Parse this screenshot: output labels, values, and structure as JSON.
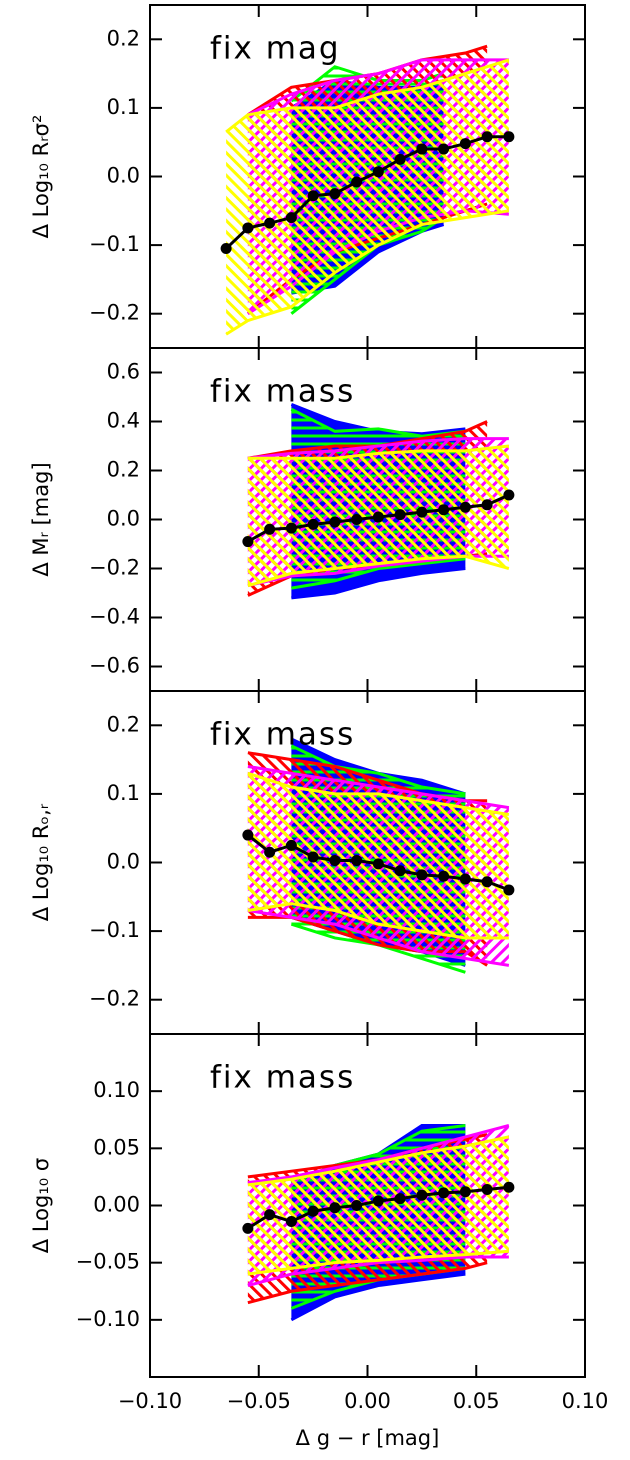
{
  "chart_data": [
    {
      "type": "band-line",
      "annotation": "fix mag",
      "ylabel": "Δ Log₁₀ Rᵣσ²",
      "xlim": [
        -0.1,
        0.1
      ],
      "xticks": [
        {
          "value": -0.1,
          "label": "−0.10"
        },
        {
          "value": -0.05,
          "label": "−0.05"
        },
        {
          "value": 0,
          "label": "0.00"
        },
        0.05,
        {
          "value": 0.1,
          "label": "0.10"
        }
      ],
      "ylim": [
        -0.25,
        0.25
      ],
      "yticks": [
        {
          "value": -0.2,
          "label": "−0.2"
        },
        {
          "value": -0.1,
          "label": "−0.1"
        },
        {
          "value": 0,
          "label": "0.0"
        },
        0.1,
        0.2
      ],
      "bands": [
        {
          "color": "#0000ff",
          "x": [
            -0.035,
            -0.015,
            0.005,
            0.025,
            0.035
          ],
          "upper": [
            0.1,
            0.14,
            0.13,
            0.13,
            0.14
          ],
          "lower": [
            -0.17,
            -0.16,
            -0.11,
            -0.08,
            -0.07
          ]
        },
        {
          "color": "#00ff00",
          "x": [
            -0.035,
            -0.015,
            0.005,
            0.025,
            0.035
          ],
          "upper": [
            0.11,
            0.16,
            0.14,
            0.14,
            0.15
          ],
          "lower": [
            -0.2,
            -0.15,
            -0.1,
            -0.08,
            -0.06
          ]
        },
        {
          "color": "#ff0000",
          "x": [
            -0.055,
            -0.035,
            -0.015,
            0.005,
            0.025,
            0.045,
            0.055
          ],
          "upper": [
            0.09,
            0.13,
            0.14,
            0.15,
            0.17,
            0.18,
            0.19
          ],
          "lower": [
            -0.2,
            -0.15,
            -0.11,
            -0.09,
            -0.07,
            -0.05,
            -0.04
          ]
        },
        {
          "color": "#ff00ff",
          "x": [
            -0.055,
            -0.035,
            -0.015,
            0.005,
            0.025,
            0.045,
            0.065
          ],
          "upper": [
            0.09,
            0.12,
            0.14,
            0.15,
            0.17,
            0.17,
            0.17
          ],
          "lower": [
            -0.2,
            -0.16,
            -0.11,
            -0.08,
            -0.06,
            -0.05,
            -0.055
          ]
        },
        {
          "color": "#ffff00",
          "x": [
            -0.065,
            -0.055,
            -0.035,
            -0.015,
            0.005,
            0.025,
            0.045,
            0.065
          ],
          "upper": [
            0.065,
            0.09,
            0.1,
            0.1,
            0.12,
            0.13,
            0.15,
            0.17
          ],
          "lower": [
            -0.23,
            -0.21,
            -0.19,
            -0.14,
            -0.1,
            -0.07,
            -0.06,
            -0.05
          ]
        }
      ],
      "series": [
        {
          "color": "#000000",
          "x": [
            -0.065,
            -0.055,
            -0.045,
            -0.035,
            -0.025,
            -0.015,
            -0.005,
            0.005,
            0.015,
            0.025,
            0.035,
            0.045,
            0.055,
            0.065
          ],
          "values": [
            -0.105,
            -0.075,
            -0.068,
            -0.06,
            -0.028,
            -0.025,
            -0.008,
            0.007,
            0.025,
            0.04,
            0.04,
            0.048,
            0.058,
            0.058
          ]
        }
      ]
    },
    {
      "type": "band-line",
      "annotation": "fix mass",
      "ylabel": "Δ Mᵣ [mag]",
      "xlim": [
        -0.1,
        0.1
      ],
      "xticks": [
        {
          "value": -0.1,
          "label": "−0.10"
        },
        {
          "value": -0.05,
          "label": "−0.05"
        },
        {
          "value": 0,
          "label": "0.00"
        },
        0.05,
        {
          "value": 0.1,
          "label": "0.10"
        }
      ],
      "ylim": [
        -0.7,
        0.7
      ],
      "yticks": [
        {
          "value": -0.6,
          "label": "−0.6"
        },
        {
          "value": -0.4,
          "label": "−0.4"
        },
        {
          "value": -0.2,
          "label": "−0.2"
        },
        {
          "value": 0,
          "label": "0.0"
        },
        0.2,
        0.4,
        0.6
      ],
      "bands": [
        {
          "color": "#0000ff",
          "x": [
            -0.035,
            -0.015,
            0.005,
            0.025,
            0.045
          ],
          "upper": [
            0.47,
            0.4,
            0.36,
            0.35,
            0.37
          ],
          "lower": [
            -0.32,
            -0.3,
            -0.25,
            -0.22,
            -0.2
          ]
        },
        {
          "color": "#00ff00",
          "x": [
            -0.035,
            -0.015,
            0.005,
            0.025,
            0.045
          ],
          "upper": [
            0.45,
            0.36,
            0.37,
            0.34,
            0.36
          ],
          "lower": [
            -0.28,
            -0.25,
            -0.2,
            -0.18,
            -0.16
          ]
        },
        {
          "color": "#ff0000",
          "x": [
            -0.055,
            -0.035,
            -0.015,
            0.005,
            0.025,
            0.045,
            0.055
          ],
          "upper": [
            0.25,
            0.28,
            0.3,
            0.3,
            0.33,
            0.36,
            0.4
          ],
          "lower": [
            -0.31,
            -0.23,
            -0.2,
            -0.19,
            -0.17,
            -0.15,
            -0.14
          ]
        },
        {
          "color": "#ff00ff",
          "x": [
            -0.055,
            -0.035,
            -0.015,
            0.005,
            0.025,
            0.045,
            0.065
          ],
          "upper": [
            0.25,
            0.27,
            0.28,
            0.3,
            0.32,
            0.33,
            0.33
          ],
          "lower": [
            -0.27,
            -0.23,
            -0.22,
            -0.19,
            -0.17,
            -0.15,
            -0.15
          ]
        },
        {
          "color": "#ffff00",
          "x": [
            -0.055,
            -0.035,
            -0.015,
            0.005,
            0.025,
            0.045,
            0.065
          ],
          "upper": [
            0.25,
            0.25,
            0.25,
            0.27,
            0.28,
            0.28,
            0.3
          ],
          "lower": [
            -0.27,
            -0.22,
            -0.2,
            -0.18,
            -0.16,
            -0.15,
            -0.2
          ]
        }
      ],
      "series": [
        {
          "color": "#000000",
          "x": [
            -0.055,
            -0.045,
            -0.035,
            -0.025,
            -0.015,
            -0.005,
            0.005,
            0.015,
            0.025,
            0.035,
            0.045,
            0.055,
            0.065
          ],
          "values": [
            -0.09,
            -0.04,
            -0.035,
            -0.02,
            -0.01,
            0,
            0.01,
            0.02,
            0.03,
            0.04,
            0.05,
            0.06,
            0.1
          ]
        }
      ]
    },
    {
      "type": "band-line",
      "annotation": "fix mass",
      "ylabel": "Δ Log₁₀ Rₒ,ᵣ",
      "xlim": [
        -0.1,
        0.1
      ],
      "xticks": [
        {
          "value": -0.1,
          "label": "−0.10"
        },
        {
          "value": -0.05,
          "label": "−0.05"
        },
        {
          "value": 0,
          "label": "0.00"
        },
        0.05,
        {
          "value": 0.1,
          "label": "0.10"
        }
      ],
      "ylim": [
        -0.25,
        0.25
      ],
      "yticks": [
        {
          "value": -0.2,
          "label": "−0.2"
        },
        {
          "value": -0.1,
          "label": "−0.1"
        },
        {
          "value": 0,
          "label": "0.0"
        },
        0.1,
        0.2
      ],
      "bands": [
        {
          "color": "#0000ff",
          "x": [
            -0.035,
            -0.015,
            0.005,
            0.025,
            0.045
          ],
          "upper": [
            0.18,
            0.15,
            0.13,
            0.12,
            0.1
          ],
          "lower": [
            -0.08,
            -0.1,
            -0.12,
            -0.13,
            -0.15
          ]
        },
        {
          "color": "#00ff00",
          "x": [
            -0.035,
            -0.015,
            0.005,
            0.025,
            0.045
          ],
          "upper": [
            0.17,
            0.14,
            0.13,
            0.11,
            0.1
          ],
          "lower": [
            -0.09,
            -0.11,
            -0.12,
            -0.14,
            -0.16
          ]
        },
        {
          "color": "#ff0000",
          "x": [
            -0.055,
            -0.035,
            -0.015,
            0.005,
            0.025,
            0.045,
            0.055
          ],
          "upper": [
            0.16,
            0.15,
            0.14,
            0.12,
            0.1,
            0.09,
            0.09
          ],
          "lower": [
            -0.08,
            -0.08,
            -0.1,
            -0.12,
            -0.13,
            -0.13,
            -0.15
          ]
        },
        {
          "color": "#ff00ff",
          "x": [
            -0.055,
            -0.035,
            -0.015,
            0.005,
            0.025,
            0.045,
            0.065
          ],
          "upper": [
            0.14,
            0.13,
            0.12,
            0.11,
            0.1,
            0.09,
            0.08
          ],
          "lower": [
            -0.07,
            -0.08,
            -0.09,
            -0.11,
            -0.13,
            -0.14,
            -0.15
          ]
        },
        {
          "color": "#ffff00",
          "x": [
            -0.055,
            -0.035,
            -0.015,
            0.005,
            0.025,
            0.045,
            0.065
          ],
          "upper": [
            0.13,
            0.11,
            0.1,
            0.1,
            0.09,
            0.08,
            0.07
          ],
          "lower": [
            -0.07,
            -0.06,
            -0.07,
            -0.09,
            -0.1,
            -0.11,
            -0.11
          ]
        }
      ],
      "series": [
        {
          "color": "#000000",
          "x": [
            -0.055,
            -0.045,
            -0.035,
            -0.025,
            -0.015,
            -0.005,
            0.005,
            0.015,
            0.025,
            0.035,
            0.045,
            0.055,
            0.065
          ],
          "values": [
            0.04,
            0.015,
            0.025,
            0.008,
            0.003,
            0.003,
            -0.002,
            -0.012,
            -0.018,
            -0.02,
            -0.024,
            -0.028,
            -0.04
          ]
        }
      ]
    },
    {
      "type": "band-line",
      "annotation": "fix mass",
      "ylabel": "Δ Log₁₀ σ",
      "xlabel": "Δ g − r [mag]",
      "xlim": [
        -0.1,
        0.1
      ],
      "xticks": [
        {
          "value": -0.1,
          "label": "−0.10"
        },
        {
          "value": -0.05,
          "label": "−0.05"
        },
        {
          "value": 0,
          "label": "0.00"
        },
        0.05,
        {
          "value": 0.1,
          "label": "0.10"
        }
      ],
      "ylim": [
        -0.15,
        0.15
      ],
      "yticks": [
        {
          "value": -0.1,
          "label": "−0.10"
        },
        {
          "value": -0.05,
          "label": "−0.05"
        },
        {
          "value": 0,
          "label": "0.00"
        },
        0.05,
        {
          "value": 0.1,
          "label": "0.10"
        }
      ],
      "bands": [
        {
          "color": "#0000ff",
          "x": [
            -0.035,
            -0.015,
            0.005,
            0.025,
            0.045
          ],
          "upper": [
            0.02,
            0.035,
            0.045,
            0.07,
            0.07
          ],
          "lower": [
            -0.1,
            -0.08,
            -0.07,
            -0.065,
            -0.06
          ]
        },
        {
          "color": "#00ff00",
          "x": [
            -0.035,
            -0.015,
            0.005,
            0.025,
            0.045
          ],
          "upper": [
            0.02,
            0.035,
            0.045,
            0.065,
            0.07
          ],
          "lower": [
            -0.09,
            -0.075,
            -0.065,
            -0.06,
            -0.055
          ]
        },
        {
          "color": "#ff0000",
          "x": [
            -0.055,
            -0.035,
            -0.015,
            0.005,
            0.025,
            0.045,
            0.055
          ],
          "upper": [
            0.025,
            0.03,
            0.035,
            0.04,
            0.05,
            0.058,
            0.062
          ],
          "lower": [
            -0.085,
            -0.075,
            -0.07,
            -0.065,
            -0.06,
            -0.055,
            -0.05
          ]
        },
        {
          "color": "#ff00ff",
          "x": [
            -0.055,
            -0.035,
            -0.015,
            0.005,
            0.025,
            0.045,
            0.065
          ],
          "upper": [
            0.02,
            0.025,
            0.033,
            0.04,
            0.05,
            0.06,
            0.07
          ],
          "lower": [
            -0.07,
            -0.06,
            -0.055,
            -0.05,
            -0.048,
            -0.045,
            -0.045
          ]
        },
        {
          "color": "#ffff00",
          "x": [
            -0.055,
            -0.035,
            -0.015,
            0.005,
            0.025,
            0.045,
            0.065
          ],
          "upper": [
            0.018,
            0.023,
            0.03,
            0.038,
            0.046,
            0.052,
            0.06
          ],
          "lower": [
            -0.06,
            -0.055,
            -0.05,
            -0.048,
            -0.045,
            -0.043,
            -0.04
          ]
        }
      ],
      "series": [
        {
          "color": "#000000",
          "x": [
            -0.055,
            -0.045,
            -0.035,
            -0.025,
            -0.015,
            -0.005,
            0.005,
            0.015,
            0.025,
            0.035,
            0.045,
            0.055,
            0.065
          ],
          "values": [
            -0.02,
            -0.008,
            -0.014,
            -0.005,
            -0.002,
            0,
            0.004,
            0.006,
            0.009,
            0.011,
            0.012,
            0.014,
            0.016
          ]
        }
      ]
    }
  ]
}
